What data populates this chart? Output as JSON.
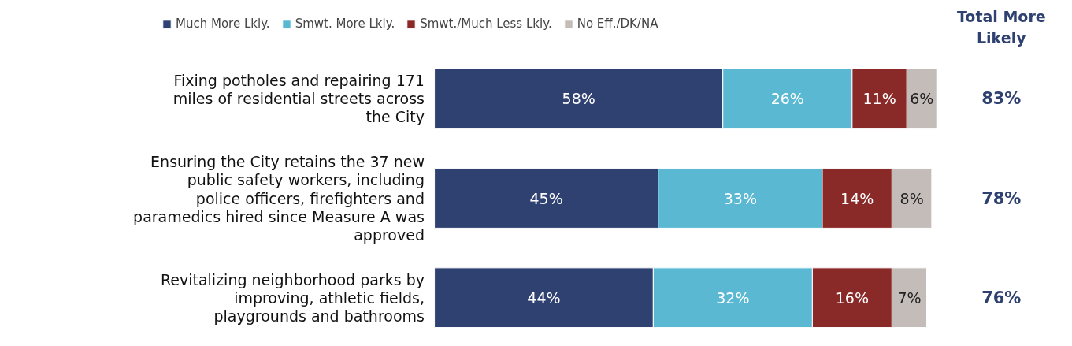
{
  "chart_data": {
    "type": "bar",
    "orientation": "horizontal",
    "stacked": true,
    "legend": "top",
    "grid": false,
    "categories": [
      "Fixing potholes and repairing 171 miles of residential streets across the City",
      "Ensuring the City retains the 37 new public safety workers, including police officers, firefighters and paramedics hired since Measure A was approved",
      "Revitalizing neighborhood parks by improving, athletic fields, playgrounds and bathrooms"
    ],
    "series": [
      {
        "name": "Much More Lkly.",
        "color": "#2f4170",
        "values": [
          58,
          45,
          44
        ],
        "value_labels": [
          "58%",
          "45%",
          "44%"
        ]
      },
      {
        "name": "Smwt. More Lkly.",
        "color": "#5ab8d2",
        "values": [
          26,
          33,
          32
        ],
        "value_labels": [
          "26%",
          "33%",
          "32%"
        ]
      },
      {
        "name": "Smwt./Much Less Lkly.",
        "color": "#8a2a28",
        "values": [
          11,
          14,
          16
        ],
        "value_labels": [
          "11%",
          "14%",
          "16%"
        ]
      },
      {
        "name": "No Eff./DK/NA",
        "color": "#c3bcb9",
        "values": [
          6,
          8,
          7
        ],
        "value_labels": [
          "6%",
          "8%",
          "7%"
        ]
      }
    ],
    "annotations": [
      "Total More Likely",
      "83%",
      "78%",
      "76%"
    ]
  }
}
